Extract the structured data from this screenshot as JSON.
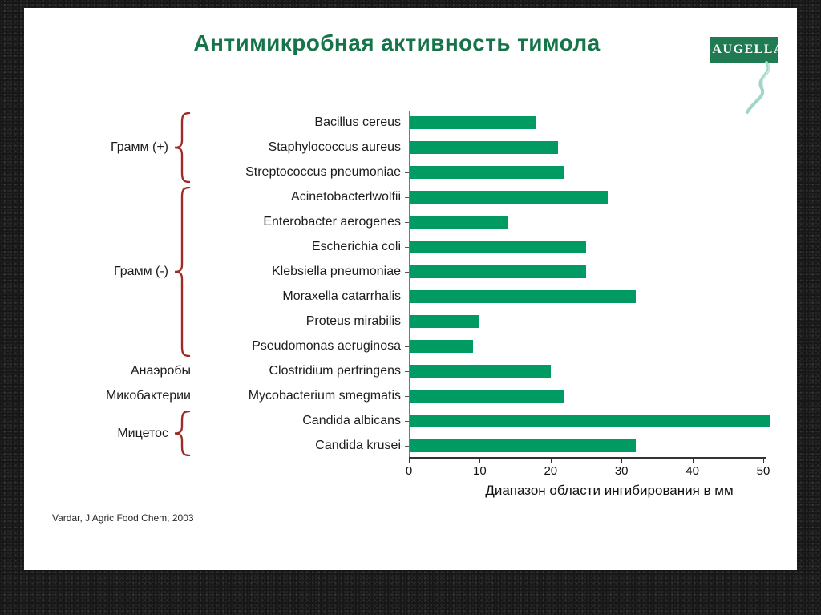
{
  "slide": {
    "logo_text": "SAUGELLA",
    "citation": "Vardar, J Agric Food Chem, 2003"
  },
  "chart_data": {
    "type": "bar",
    "orientation": "horizontal",
    "title": "Антимикробная активность тимола",
    "xlabel": "Диапазон области ингибирования в мм",
    "xlim": [
      0,
      50
    ],
    "xticks": [
      0,
      10,
      20,
      30,
      40,
      50
    ],
    "grid": false,
    "legend": false,
    "categories": [
      "Bacillus cereus",
      "Staphylococcus aureus",
      "Streptococcus pneumoniae",
      "Acinetobacterlwolfii",
      "Enterobacter aerogenes",
      "Escherichia coli",
      "Klebsiella pneumoniae",
      "Moraxella catarrhalis",
      "Proteus mirabilis",
      "Pseudomonas aeruginosa",
      "Clostridium perfringens",
      "Mycobacterium smegmatis",
      "Candida albicans",
      "Candida krusei"
    ],
    "values": [
      18,
      21,
      22,
      28,
      14,
      25,
      25,
      32,
      10,
      9,
      20,
      22,
      51,
      32
    ],
    "groups": [
      {
        "label": "Грамм (+)",
        "start": 0,
        "end": 2,
        "brace": true
      },
      {
        "label": "Грамм (-)",
        "start": 3,
        "end": 9,
        "brace": true
      },
      {
        "label": "Анаэробы",
        "start": 10,
        "end": 10,
        "brace": false
      },
      {
        "label": "Микобактерии",
        "start": 11,
        "end": 11,
        "brace": false
      },
      {
        "label": "Мицетос",
        "start": 12,
        "end": 13,
        "brace": true
      }
    ]
  },
  "colors": {
    "bar": "#009A62",
    "title_text": "#17744A",
    "brace": "#9E2B28",
    "axis": "#333333",
    "logo_bg": "#207B53",
    "swoosh": "#9ED6C9"
  }
}
